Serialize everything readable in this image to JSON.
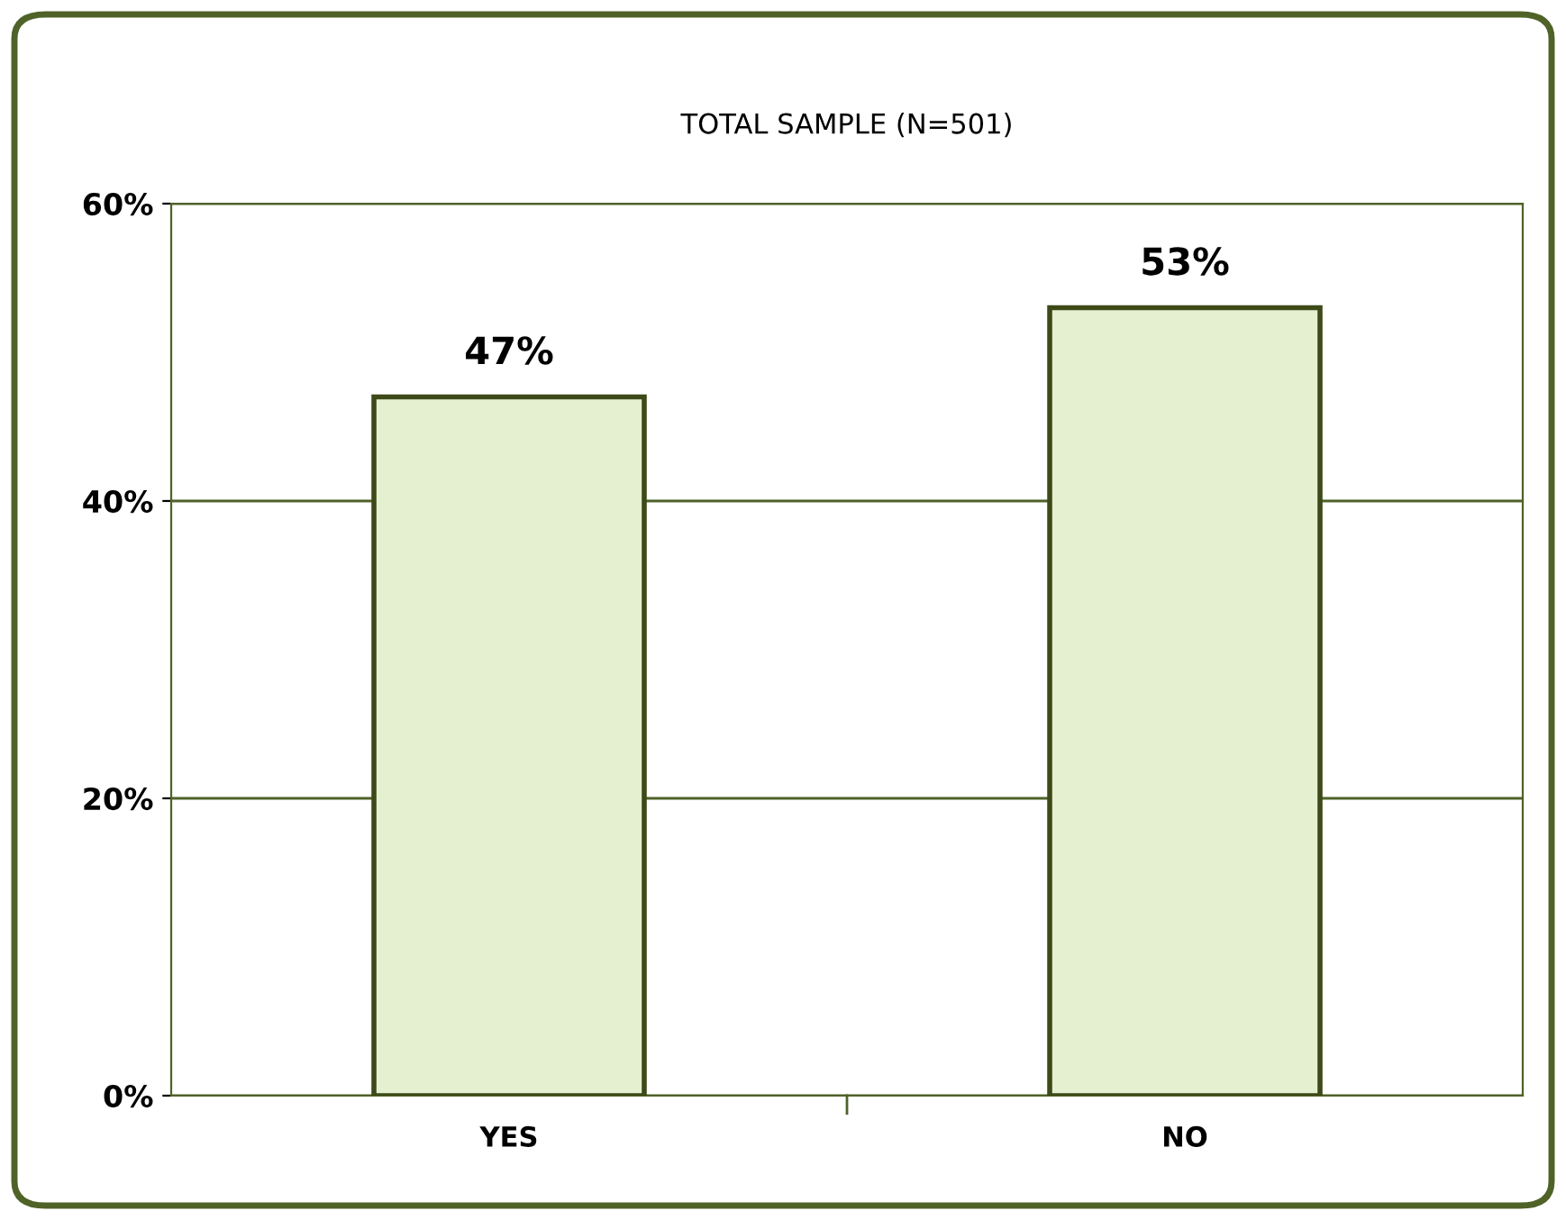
{
  "chart_data": {
    "type": "bar",
    "title": "TOTAL SAMPLE (N=501)",
    "categories": [
      "YES",
      "NO"
    ],
    "values": [
      47,
      53
    ],
    "color": "#e4f0d0",
    "value_labels": [
      "47%",
      "53%"
    ],
    "ylim": [
      0,
      60
    ],
    "yticks": [
      {
        "value": 0,
        "label": "0%"
      },
      {
        "value": 20,
        "label": "20%"
      },
      {
        "value": 40,
        "label": "40%"
      },
      {
        "value": 60,
        "label": "60%"
      }
    ],
    "grid": "y"
  }
}
